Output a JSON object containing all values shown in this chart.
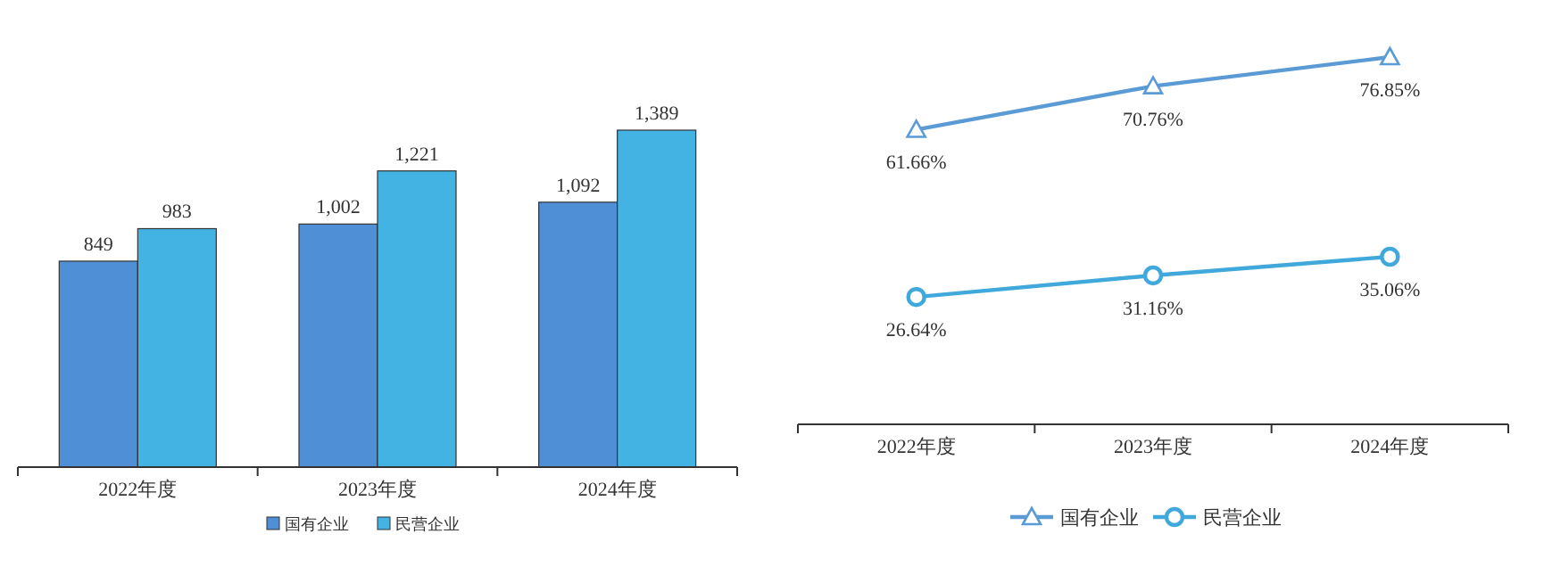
{
  "chart_data": [
    {
      "type": "bar",
      "categories": [
        "2022年度",
        "2023年度",
        "2024年度"
      ],
      "legend": "bottom",
      "series": [
        {
          "name": "国有企业",
          "color": "#4e8fd6",
          "values": [
            849,
            1002,
            1092
          ],
          "value_labels": [
            "849",
            "1,002",
            "1,092"
          ]
        },
        {
          "name": "民营企业",
          "color": "#42b3e2",
          "values": [
            983,
            1221,
            1389
          ],
          "value_labels": [
            "983",
            "1,221",
            "1,389"
          ]
        }
      ]
    },
    {
      "type": "line",
      "categories": [
        "2022年度",
        "2023年度",
        "2024年度"
      ],
      "legend": "bottom",
      "series": [
        {
          "name": "国有企业",
          "color": "#5b9bd5",
          "marker": "triangle",
          "values": [
            61.66,
            70.76,
            76.85
          ],
          "value_labels": [
            "61.66%",
            "70.76%",
            "76.85%"
          ]
        },
        {
          "name": "民营企业",
          "color": "#41a8dc",
          "marker": "circle",
          "values": [
            26.64,
            31.16,
            35.06
          ],
          "value_labels": [
            "26.64%",
            "31.16%",
            "35.06%"
          ]
        }
      ]
    }
  ]
}
